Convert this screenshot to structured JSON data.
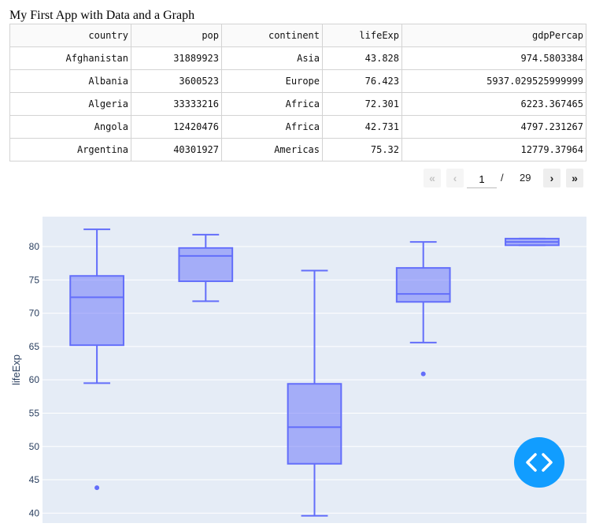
{
  "app": {
    "title": "My First App with Data and a Graph"
  },
  "table": {
    "columns": [
      "country",
      "pop",
      "continent",
      "lifeExp",
      "gdpPercap"
    ],
    "rows": [
      [
        "Afghanistan",
        "31889923",
        "Asia",
        "43.828",
        "974.5803384"
      ],
      [
        "Albania",
        "3600523",
        "Europe",
        "76.423",
        "5937.029525999999"
      ],
      [
        "Algeria",
        "33333216",
        "Africa",
        "72.301",
        "6223.367465"
      ],
      [
        "Angola",
        "12420476",
        "Africa",
        "42.731",
        "4797.231267"
      ],
      [
        "Argentina",
        "40301927",
        "Americas",
        "75.32",
        "12779.37964"
      ]
    ]
  },
  "pager": {
    "first": "«",
    "prev": "‹",
    "next": "›",
    "last": "»",
    "current": "1",
    "separator": "/",
    "total": "29"
  },
  "chart_data": {
    "type": "box",
    "ylabel": "lifeExp",
    "ylim": [
      38.5,
      84.5
    ],
    "yticks": [
      40,
      45,
      50,
      55,
      60,
      65,
      70,
      75,
      80
    ],
    "grid": true,
    "color": "#636efa",
    "fill": "rgba(99,110,250,0.5)",
    "background": "#e5ecf6",
    "boxes": [
      {
        "lowerfence": 59.5,
        "q1": 65.2,
        "median": 72.4,
        "q3": 75.6,
        "upperfence": 82.6,
        "outliers": [
          43.8
        ]
      },
      {
        "lowerfence": 71.8,
        "q1": 74.8,
        "median": 78.6,
        "q3": 79.8,
        "upperfence": 81.8,
        "outliers": []
      },
      {
        "lowerfence": 39.6,
        "q1": 47.4,
        "median": 52.9,
        "q3": 59.4,
        "upperfence": 76.4,
        "outliers": []
      },
      {
        "lowerfence": 65.6,
        "q1": 71.7,
        "median": 72.9,
        "q3": 76.8,
        "upperfence": 80.7,
        "outliers": [
          60.9
        ]
      },
      {
        "lowerfence": 80.2,
        "q1": 80.2,
        "median": 80.7,
        "q3": 81.2,
        "upperfence": 81.2,
        "outliers": []
      }
    ]
  },
  "fab": {
    "icon": "code-icon",
    "color": "#119dff"
  }
}
